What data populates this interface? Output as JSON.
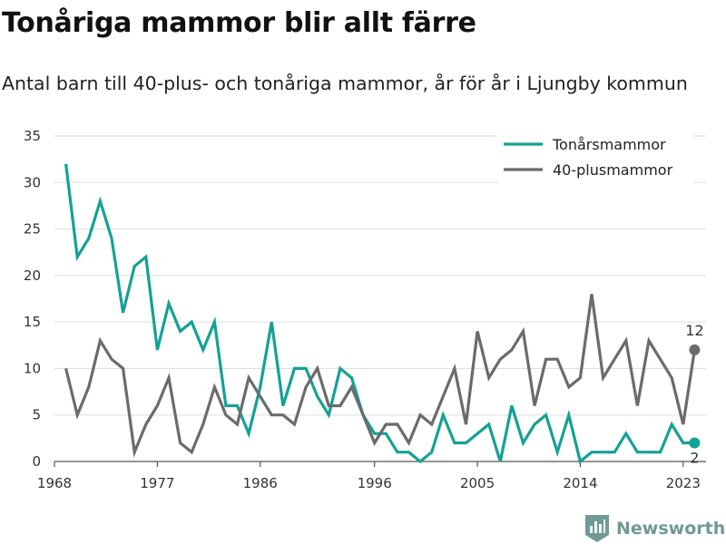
{
  "header": {
    "title": "Tonåriga mammor blir allt färre",
    "subtitle": "Antal barn till 40-plus- och tonåriga mammor, år för år i Ljungby kommun"
  },
  "brand": {
    "name": "Newsworthy",
    "icon": "newsworthy-bar-chart-logo-icon"
  },
  "colors": {
    "teen": "#14a196",
    "forty": "#6b6b6b",
    "grid": "#dddddd",
    "axis": "#555555"
  },
  "chart_data": {
    "type": "line",
    "x": [
      1969,
      1970,
      1971,
      1972,
      1973,
      1974,
      1975,
      1976,
      1977,
      1978,
      1979,
      1980,
      1981,
      1982,
      1983,
      1984,
      1985,
      1986,
      1987,
      1988,
      1989,
      1990,
      1991,
      1992,
      1993,
      1994,
      1995,
      1996,
      1997,
      1998,
      1999,
      2000,
      2001,
      2002,
      2003,
      2004,
      2005,
      2006,
      2007,
      2008,
      2009,
      2010,
      2011,
      2012,
      2013,
      2014,
      2015,
      2016,
      2017,
      2018,
      2019,
      2020,
      2021,
      2022,
      2023,
      2024
    ],
    "series": [
      {
        "name": "Tonårsmammor",
        "color": "#14a196",
        "values": [
          32,
          22,
          24,
          28,
          24,
          16,
          21,
          22,
          12,
          17,
          14,
          15,
          12,
          15,
          6,
          6,
          3,
          8,
          15,
          6,
          10,
          10,
          7,
          5,
          10,
          9,
          5,
          3,
          3,
          1,
          1,
          0,
          1,
          5,
          2,
          2,
          3,
          4,
          0,
          6,
          2,
          4,
          5,
          1,
          5,
          0,
          1,
          1,
          1,
          3,
          1,
          1,
          1,
          4,
          2,
          2
        ],
        "end_label": "2"
      },
      {
        "name": "40-plusmammor",
        "color": "#6b6b6b",
        "values": [
          10,
          5,
          8,
          13,
          11,
          10,
          1,
          4,
          6,
          9,
          2,
          1,
          4,
          8,
          5,
          4,
          9,
          7,
          5,
          5,
          4,
          8,
          10,
          6,
          6,
          8,
          5,
          2,
          4,
          4,
          2,
          5,
          4,
          7,
          10,
          4,
          14,
          9,
          11,
          12,
          14,
          6,
          11,
          11,
          8,
          9,
          18,
          9,
          11,
          13,
          6,
          13,
          11,
          9,
          4,
          12
        ],
        "end_label": "12"
      }
    ],
    "xticks": [
      "1968",
      "1977",
      "1986",
      "1996",
      "2005",
      "2014",
      "2023"
    ],
    "yticks": [
      "0",
      "5",
      "10",
      "15",
      "20",
      "25",
      "30",
      "35"
    ],
    "xlim": [
      1968,
      2025
    ],
    "ylim": [
      0,
      35
    ],
    "grid": true,
    "legend_position": "top-right"
  }
}
